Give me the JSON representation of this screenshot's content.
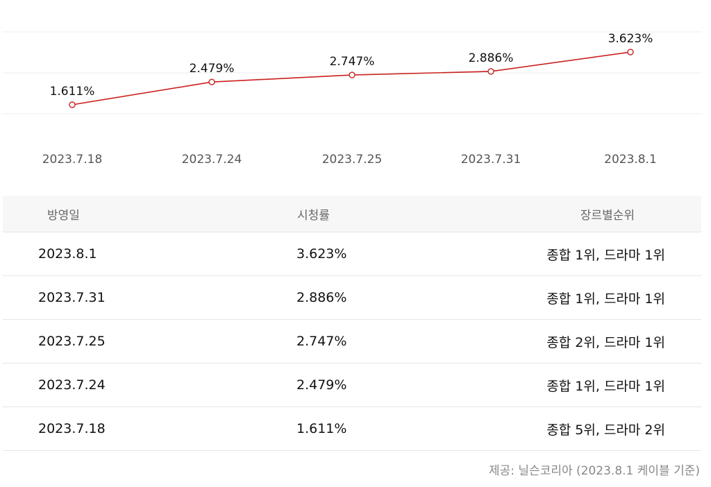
{
  "chart_data": {
    "type": "line",
    "categories": [
      "2023.7.18",
      "2023.7.24",
      "2023.7.25",
      "2023.7.31",
      "2023.8.1"
    ],
    "values": [
      1.611,
      2.479,
      2.747,
      2.886,
      3.623
    ],
    "data_labels": [
      "1.611%",
      "2.479%",
      "2.747%",
      "2.886%",
      "3.623%"
    ],
    "unit": "%",
    "title": "",
    "xlabel": "",
    "ylabel": "",
    "ylim": [
      0,
      4
    ],
    "grid": true,
    "legend": "none",
    "line_color": "#c9201e",
    "marker_fill": "#ffffff"
  },
  "table": {
    "headers": {
      "date": "방영일",
      "rating": "시청률",
      "rank": "장르별순위"
    },
    "rows": [
      {
        "date": "2023.8.1",
        "rating": "3.623%",
        "rank": "종합 1위, 드라마 1위"
      },
      {
        "date": "2023.7.31",
        "rating": "2.886%",
        "rank": "종합 1위, 드라마 1위"
      },
      {
        "date": "2023.7.25",
        "rating": "2.747%",
        "rank": "종합 2위, 드라마 1위"
      },
      {
        "date": "2023.7.24",
        "rating": "2.479%",
        "rank": "종합 1위, 드라마 1위"
      },
      {
        "date": "2023.7.18",
        "rating": "1.611%",
        "rank": "종합 5위, 드라마 2위"
      }
    ]
  },
  "source_note": "제공: 닐슨코리아 (2023.8.1 케이블 기준)"
}
